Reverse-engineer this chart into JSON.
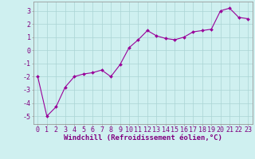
{
  "x": [
    0,
    1,
    2,
    3,
    4,
    5,
    6,
    7,
    8,
    9,
    10,
    11,
    12,
    13,
    14,
    15,
    16,
    17,
    18,
    19,
    20,
    21,
    22,
    23
  ],
  "y": [
    -2.0,
    -5.0,
    -4.3,
    -2.8,
    -2.0,
    -1.8,
    -1.7,
    -1.5,
    -2.0,
    -1.1,
    0.2,
    0.8,
    1.5,
    1.1,
    0.9,
    0.8,
    1.0,
    1.4,
    1.5,
    1.6,
    3.0,
    3.2,
    2.5,
    2.4
  ],
  "line_color": "#990099",
  "marker": "D",
  "marker_size": 2.0,
  "bg_color": "#cff0f0",
  "grid_color": "#aad4d4",
  "axis_label": "Windchill (Refroidissement éolien,°C)",
  "yticks": [
    -5,
    -4,
    -3,
    -2,
    -1,
    0,
    1,
    2,
    3
  ],
  "xticks": [
    0,
    1,
    2,
    3,
    4,
    5,
    6,
    7,
    8,
    9,
    10,
    11,
    12,
    13,
    14,
    15,
    16,
    17,
    18,
    19,
    20,
    21,
    22,
    23
  ],
  "ylim": [
    -5.6,
    3.7
  ],
  "xlim": [
    -0.5,
    23.5
  ],
  "xlabel_fontsize": 6.5,
  "tick_fontsize": 6.0,
  "label_color": "#800080",
  "border_color": "#999999",
  "linewidth": 0.8
}
